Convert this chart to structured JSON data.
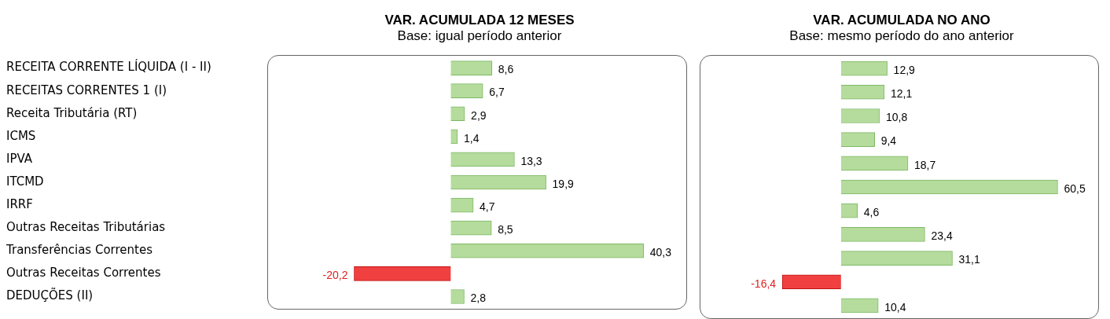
{
  "chart_data": [
    {
      "type": "bar",
      "orientation": "horizontal",
      "title": "VAR. ACUMULADA 12 MESES",
      "subtitle": "Base: igual período anterior",
      "tick_labels": "y",
      "categories": [
        "RECEITA CORRENTE LÍQUIDA (I - II)",
        "RECEITAS CORRENTES 1 (I)",
        "Receita Tributária (RT)",
        "ICMS",
        "IPVA",
        "ITCMD",
        "IRRF",
        "Outras Receitas Tributárias",
        "Transferências Correntes",
        "Outras Receitas Correntes",
        "DEDUÇÕES (II)"
      ],
      "values": [
        8.6,
        6.7,
        2.9,
        1.4,
        13.3,
        19.9,
        4.7,
        8.5,
        40.3,
        -20.2,
        2.8
      ],
      "value_labels": [
        "8,6",
        "6,7",
        "2,9",
        "1,4",
        "13,3",
        "19,9",
        "4,7",
        "8,5",
        "40,3",
        "-20,2",
        "2,8"
      ],
      "colors": [
        "#b5dc9c",
        "#b5dc9c",
        "#b5dc9c",
        "#b5dc9c",
        "#b5dc9c",
        "#b5dc9c",
        "#b5dc9c",
        "#b5dc9c",
        "#b5dc9c",
        "#f04040",
        "#b5dc9c"
      ]
    },
    {
      "type": "bar",
      "orientation": "horizontal",
      "title": "VAR. ACUMULADA NO ANO",
      "subtitle": "Base: mesmo período do ano anterior",
      "tick_labels": false,
      "categories": [
        null,
        null,
        null,
        null,
        null,
        null,
        null,
        null,
        null,
        null,
        null
      ],
      "values": [
        12.9,
        12.1,
        10.8,
        9.4,
        18.7,
        60.5,
        4.6,
        23.4,
        31.1,
        -16.4,
        10.4
      ],
      "value_labels": [
        "12,9",
        "12,1",
        "10,8",
        "9,4",
        "18,7",
        "60,5",
        "4,6",
        "23,4",
        "31,1",
        "-16,4",
        "10,4"
      ],
      "colors": [
        "#b5dc9c",
        "#b5dc9c",
        "#b5dc9c",
        "#b5dc9c",
        "#b5dc9c",
        "#b5dc9c",
        "#b5dc9c",
        "#b5dc9c",
        "#b5dc9c",
        "#f04040",
        "#b5dc9c"
      ]
    }
  ]
}
